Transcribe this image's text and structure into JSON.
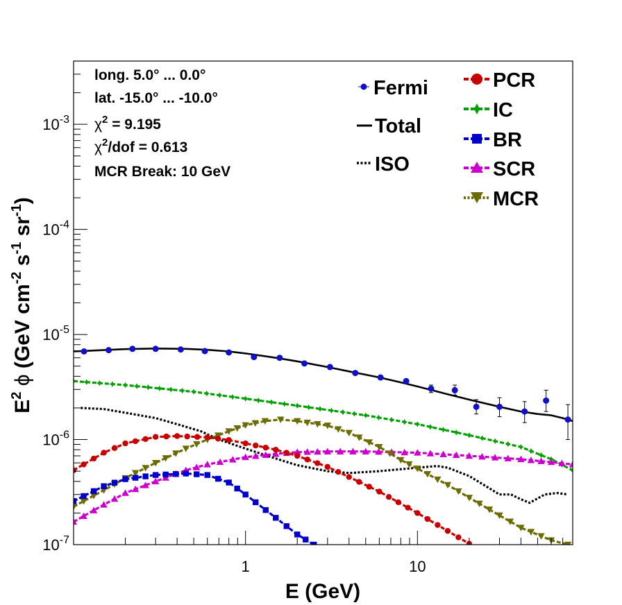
{
  "chart_data": {
    "type": "line",
    "xscale": "log",
    "yscale": "log",
    "xlim": [
      0.1,
      80
    ],
    "ylim": [
      1e-07,
      0.004
    ],
    "xlabel": "E (GeV)",
    "ylabel_parts": {
      "E": "E",
      "two": "2",
      "phi": "ϕ",
      "open": "(GeV cm",
      "m2": "-2",
      "s": " s",
      "m1a": "-1",
      "sr": " sr",
      "m1b": "-1",
      "close": ")"
    },
    "x_ticks": [
      {
        "value": 1,
        "label": "1"
      },
      {
        "value": 10,
        "label": "10"
      }
    ],
    "y_ticks": [
      {
        "value": 1e-07,
        "base": "10",
        "exp": "-7"
      },
      {
        "value": 1e-06,
        "base": "10",
        "exp": "-6"
      },
      {
        "value": 1e-05,
        "base": "10",
        "exp": "-5"
      },
      {
        "value": 0.0001,
        "base": "10",
        "exp": "-4"
      },
      {
        "value": 0.001,
        "base": "10",
        "exp": "-3"
      }
    ],
    "info": {
      "long": "long. 5.0° ... 0.0°",
      "lat": "lat. -15.0° ... -10.0°",
      "chi2_sym": "χ",
      "chi2_exp": "2",
      "chi2_val": " = 9.195",
      "chi2dof_sym": "χ",
      "chi2dof_exp": "2",
      "chi2dof_val": "/dof = 0.613",
      "mcr_break": "MCR Break: 10 GeV"
    },
    "legend": [
      {
        "key": "fermi",
        "label": "Fermi"
      },
      {
        "key": "total",
        "label": "Total"
      },
      {
        "key": "iso",
        "label": "ISO"
      },
      {
        "key": "pcr",
        "label": "PCR"
      },
      {
        "key": "ic",
        "label": "IC"
      },
      {
        "key": "br",
        "label": "BR"
      },
      {
        "key": "scr",
        "label": "SCR"
      },
      {
        "key": "mcr",
        "label": "MCR"
      }
    ],
    "fermi": {
      "name": "Fermi",
      "color": "#1010c8",
      "x": [
        0.115,
        0.16,
        0.22,
        0.3,
        0.42,
        0.58,
        0.8,
        1.12,
        1.58,
        2.2,
        3.1,
        4.35,
        6.1,
        8.6,
        12.0,
        16.5,
        22.0,
        30.0,
        42.0,
        56.0,
        75.0
      ],
      "y": [
        6.9e-06,
        7.1e-06,
        7.3e-06,
        7.3e-06,
        7.2e-06,
        6.95e-06,
        6.75e-06,
        6.1e-06,
        6e-06,
        5.3e-06,
        4.9e-06,
        4.3e-06,
        3.9e-06,
        3.6e-06,
        3.05e-06,
        2.95e-06,
        2.05e-06,
        2.05e-06,
        1.85e-06,
        2.35e-06,
        1.55e-06
      ],
      "err_lo": [
        5e-08,
        5e-08,
        5e-08,
        5e-08,
        5e-08,
        5e-08,
        5e-08,
        5e-08,
        5e-08,
        5e-08,
        5e-08,
        5e-08,
        5e-08,
        2.5e-07,
        2.5e-07,
        3e-07,
        3e-07,
        4e-07,
        4e-07,
        5e-07,
        5.5e-07
      ],
      "err_hi": [
        5e-08,
        5e-08,
        5e-08,
        5e-08,
        5e-08,
        5e-08,
        5e-08,
        5e-08,
        5e-08,
        5e-08,
        5e-08,
        5e-08,
        5e-08,
        2.5e-07,
        2.5e-07,
        3.5e-07,
        3.5e-07,
        4.5e-07,
        4.5e-07,
        6e-07,
        6e-07
      ]
    },
    "series": [
      {
        "key": "total",
        "name": "Total",
        "color": "#000000",
        "style": "solid",
        "marker": "none",
        "x": [
          0.1,
          0.15,
          0.2,
          0.3,
          0.45,
          0.6,
          0.8,
          1.0,
          1.5,
          2.0,
          3.0,
          4.0,
          6.0,
          8.0,
          10.0,
          15.0,
          20.0,
          30.0,
          40.0,
          50.0,
          60.0,
          70.0,
          80.0
        ],
        "y": [
          6.9e-06,
          7.1e-06,
          7.25e-06,
          7.35e-06,
          7.3e-06,
          7.15e-06,
          6.9e-06,
          6.6e-06,
          6e-06,
          5.55e-06,
          4.9e-06,
          4.45e-06,
          3.9e-06,
          3.5e-06,
          3.2e-06,
          2.7e-06,
          2.4e-06,
          2.05e-06,
          1.85e-06,
          1.75e-06,
          1.7e-06,
          1.6e-06,
          1.5e-06
        ]
      },
      {
        "key": "iso",
        "name": "ISO",
        "color": "#000000",
        "style": "dotted",
        "marker": "none",
        "x": [
          0.11,
          0.15,
          0.2,
          0.3,
          0.4,
          0.55,
          0.7,
          1.0,
          1.5,
          2.0,
          3.0,
          4.0,
          6.0,
          10.0,
          13.0,
          15.0,
          20.0,
          25.0,
          30.0,
          35.0,
          40.0,
          45.0,
          55.0,
          65.0,
          75.0
        ],
        "y": [
          2e-06,
          1.95e-06,
          1.8e-06,
          1.6e-06,
          1.4e-06,
          1.2e-06,
          1e-06,
          8.2e-07,
          6.6e-07,
          5.7e-07,
          5e-07,
          4.8e-07,
          5e-07,
          5.4e-07,
          5.6e-07,
          5.4e-07,
          4.5e-07,
          3.6e-07,
          3e-07,
          3e-07,
          2.7e-07,
          2.5e-07,
          3e-07,
          3.1e-07,
          3e-07
        ]
      },
      {
        "key": "pcr",
        "name": "PCR",
        "color": "#c80000",
        "style": "dashed",
        "marker": "circle",
        "x": [
          0.1,
          0.15,
          0.2,
          0.3,
          0.4,
          0.6,
          0.8,
          1.0,
          1.5,
          2.0,
          3.0,
          4.0,
          6.0,
          10.0,
          15.0,
          20.0
        ],
        "y": [
          5.1e-07,
          7.5e-07,
          9.2e-07,
          1.06e-06,
          1.08e-06,
          1.05e-06,
          9.9e-07,
          9.2e-07,
          8e-07,
          7e-07,
          5.5e-07,
          4.4e-07,
          3.2e-07,
          2e-07,
          1.35e-07,
          1.02e-07
        ]
      },
      {
        "key": "ic",
        "name": "IC",
        "color": "#00a000",
        "style": "dashed",
        "marker": "star",
        "x": [
          0.1,
          0.2,
          0.5,
          1.0,
          2.0,
          5.0,
          10.0,
          20.0,
          40.0,
          60.0,
          80.0
        ],
        "y": [
          3.6e-06,
          3.3e-06,
          2.85e-06,
          2.45e-06,
          2.1e-06,
          1.7e-06,
          1.4e-06,
          1.1e-06,
          8.5e-07,
          6.5e-07,
          5.1e-07
        ]
      },
      {
        "key": "br",
        "name": "BR",
        "color": "#0000c8",
        "style": "dashed",
        "marker": "square",
        "x": [
          0.1,
          0.15,
          0.2,
          0.3,
          0.45,
          0.6,
          0.8,
          1.0,
          1.5,
          2.0,
          2.5
        ],
        "y": [
          2.6e-07,
          3.6e-07,
          4.2e-07,
          4.6e-07,
          4.75e-07,
          4.6e-07,
          3.9e-07,
          3e-07,
          1.8e-07,
          1.25e-07,
          1e-07
        ]
      },
      {
        "key": "scr",
        "name": "SCR",
        "color": "#cc00cc",
        "style": "dashed",
        "marker": "triangle",
        "x": [
          0.1,
          0.15,
          0.2,
          0.3,
          0.45,
          0.6,
          1.0,
          1.5,
          2.0,
          3.0,
          5.0,
          10.0,
          20.0,
          40.0,
          60.0,
          80.0
        ],
        "y": [
          1.65e-07,
          2.4e-07,
          3.1e-07,
          4e-07,
          5.1e-07,
          5.8e-07,
          6.8e-07,
          7.3e-07,
          7.6e-07,
          7.7e-07,
          7.7e-07,
          7.5e-07,
          7e-07,
          6.5e-07,
          6.1e-07,
          5.8e-07
        ]
      },
      {
        "key": "mcr",
        "name": "MCR",
        "color": "#6b6b00",
        "style": "dashed",
        "marker": "triangle-down",
        "x": [
          0.1,
          0.15,
          0.2,
          0.3,
          0.45,
          0.6,
          0.8,
          1.0,
          1.3,
          1.6,
          2.0,
          3.0,
          4.0,
          6.0,
          8.0,
          10.0,
          15.0,
          20.0,
          30.0,
          40.0,
          60.0,
          75.0
        ],
        "y": [
          2.3e-07,
          3.3e-07,
          4.3e-07,
          6e-07,
          8.2e-07,
          1e-06,
          1.2e-06,
          1.37e-06,
          1.5e-06,
          1.55e-06,
          1.5e-06,
          1.36e-06,
          1.16e-06,
          8.5e-07,
          6.4e-07,
          5.3e-07,
          3.7e-07,
          2.8e-07,
          1.9e-07,
          1.45e-07,
          1.1e-07,
          1e-07
        ]
      }
    ]
  }
}
